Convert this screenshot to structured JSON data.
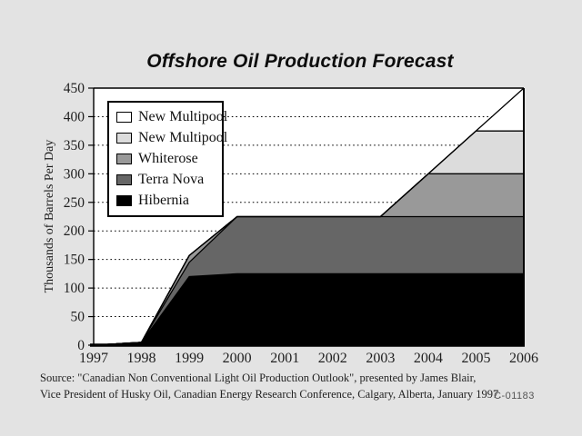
{
  "page": {
    "source_line1": "Source: \"Canadian Non Conventional Light Oil Production Outlook\", presented by James Blair,",
    "source_line2": "Vice President of Husky Oil, Canadian Energy Research Conference, Calgary, Alberta, January 1997.",
    "doc_code": "C-01183"
  },
  "chart_data": {
    "type": "area",
    "stacked": true,
    "title": "Offshore Oil Production Forecast",
    "xlabel": "",
    "ylabel": "Thousands of Barrels Per Day",
    "categories": [
      "1997",
      "1998",
      "1999",
      "2000",
      "2001",
      "2002",
      "2003",
      "2004",
      "2005",
      "2006"
    ],
    "series": [
      {
        "name": "Hibernia",
        "color": "#000000",
        "values": [
          0,
          5,
          120,
          125,
          125,
          125,
          125,
          125,
          125,
          125
        ]
      },
      {
        "name": "Terra Nova",
        "color": "#666666",
        "values": [
          0,
          0,
          25,
          100,
          100,
          100,
          100,
          100,
          100,
          100
        ]
      },
      {
        "name": "Whiterose",
        "color": "#999999",
        "values": [
          0,
          0,
          12,
          0,
          0,
          0,
          0,
          75,
          75,
          75
        ]
      },
      {
        "name": "New Multipool",
        "color": "#dcdcdc",
        "values": [
          0,
          0,
          0,
          0,
          0,
          0,
          0,
          0,
          75,
          75
        ]
      },
      {
        "name": "New Multipool",
        "color": "#ffffff",
        "values": [
          0,
          0,
          0,
          0,
          0,
          0,
          0,
          0,
          0,
          75
        ]
      }
    ],
    "legend": {
      "position": "upper-left",
      "entries": [
        {
          "label": "New Multipool",
          "color": "#ffffff"
        },
        {
          "label": "New Multipool",
          "color": "#dcdcdc"
        },
        {
          "label": "Whiterose",
          "color": "#999999"
        },
        {
          "label": "Terra Nova",
          "color": "#666666"
        },
        {
          "label": "Hibernia",
          "color": "#000000"
        }
      ]
    },
    "ylim": [
      0,
      450
    ],
    "yticks": [
      0,
      50,
      100,
      150,
      200,
      250,
      300,
      350,
      400,
      450
    ],
    "grid": "dotted-horizontal",
    "plot_background": "#ffffff"
  }
}
